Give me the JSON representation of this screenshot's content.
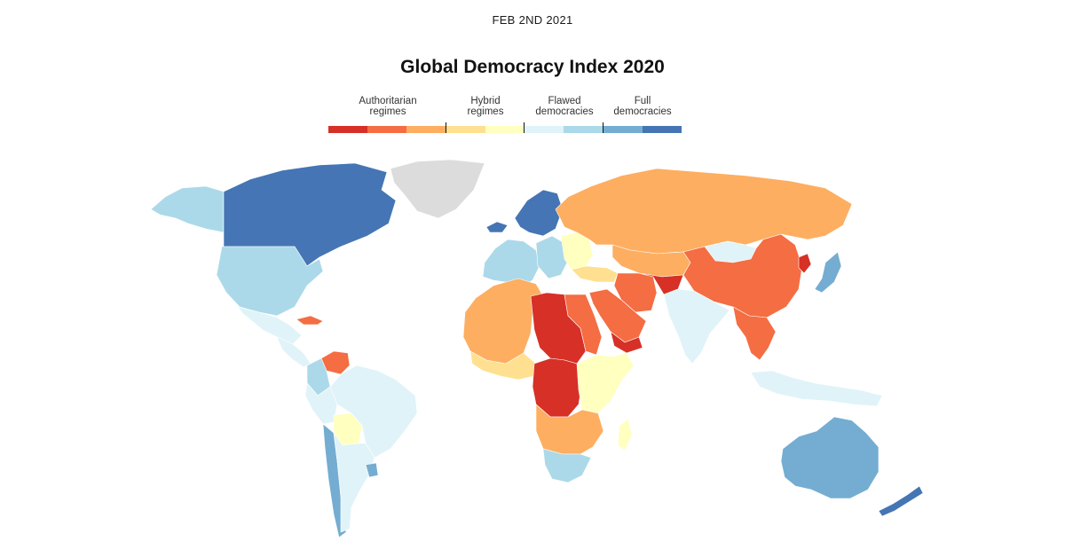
{
  "header": {
    "date": "FEB 2ND 2021",
    "title": "Global Democracy Index 2020"
  },
  "legend": {
    "categories": [
      {
        "line1": "Authoritarian",
        "line2": "regimes"
      },
      {
        "line1": "Hybrid",
        "line2": "regimes"
      },
      {
        "line1": "Flawed",
        "line2": "democracies"
      },
      {
        "line1": "Full",
        "line2": "democracies"
      }
    ],
    "colors": [
      "#d73027",
      "#f46d43",
      "#fdae61",
      "#fee090",
      "#ffffbf",
      "#e0f3f8",
      "#abd9e9",
      "#74add1",
      "#4575b4"
    ]
  },
  "map": {
    "no_data_color": "#dcdcdc",
    "regions": [
      {
        "name": "alaska",
        "class": 6
      },
      {
        "name": "canada",
        "class": 8
      },
      {
        "name": "greenland",
        "class": -1
      },
      {
        "name": "usa",
        "class": 6
      },
      {
        "name": "mexico",
        "class": 5
      },
      {
        "name": "central-america",
        "class": 5
      },
      {
        "name": "cuba",
        "class": 1
      },
      {
        "name": "venezuela",
        "class": 1
      },
      {
        "name": "colombia",
        "class": 6
      },
      {
        "name": "brazil",
        "class": 5
      },
      {
        "name": "peru",
        "class": 5
      },
      {
        "name": "bolivia",
        "class": 4
      },
      {
        "name": "chile",
        "class": 7
      },
      {
        "name": "argentina",
        "class": 5
      },
      {
        "name": "uruguay",
        "class": 7
      },
      {
        "name": "iceland",
        "class": 8
      },
      {
        "name": "scandinavia",
        "class": 8
      },
      {
        "name": "western-europe",
        "class": 6
      },
      {
        "name": "central-europe",
        "class": 6
      },
      {
        "name": "eastern-europe",
        "class": 4
      },
      {
        "name": "russia",
        "class": 2
      },
      {
        "name": "central-asia",
        "class": 2
      },
      {
        "name": "mongolia",
        "class": 5
      },
      {
        "name": "china",
        "class": 1
      },
      {
        "name": "north-korea",
        "class": 0
      },
      {
        "name": "japan",
        "class": 7
      },
      {
        "name": "turkey",
        "class": 3
      },
      {
        "name": "iran",
        "class": 1
      },
      {
        "name": "afghanistan",
        "class": 0
      },
      {
        "name": "arabia",
        "class": 1
      },
      {
        "name": "yemen",
        "class": 0
      },
      {
        "name": "india",
        "class": 5
      },
      {
        "name": "mainland-sea",
        "class": 1
      },
      {
        "name": "maritime-sea",
        "class": 5
      },
      {
        "name": "north-africa",
        "class": 2
      },
      {
        "name": "libya-sudan",
        "class": 0
      },
      {
        "name": "egypt",
        "class": 1
      },
      {
        "name": "west-africa",
        "class": 3
      },
      {
        "name": "central-africa",
        "class": 0
      },
      {
        "name": "east-africa",
        "class": 4
      },
      {
        "name": "southern-africa",
        "class": 2
      },
      {
        "name": "south-africa",
        "class": 6
      },
      {
        "name": "madagascar",
        "class": 4
      },
      {
        "name": "australia",
        "class": 7
      },
      {
        "name": "new-zealand",
        "class": 8
      }
    ]
  }
}
